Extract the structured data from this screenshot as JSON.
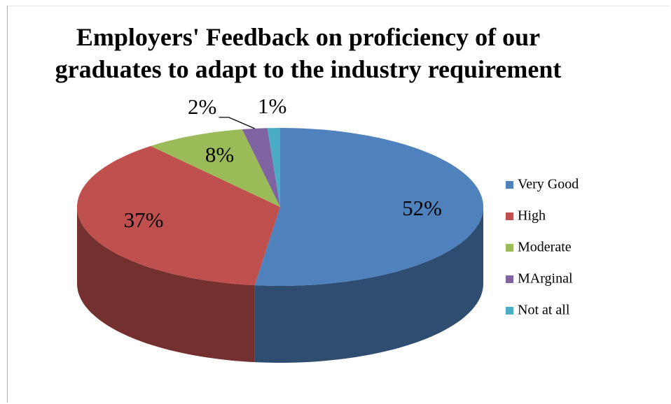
{
  "chart_data": {
    "type": "pie",
    "title": "Employers' Feedback on proficiency of our\ngraduates to adapt to the industry requirement",
    "categories": [
      "Very Good",
      "High",
      "Moderate",
      "MArginal",
      "Not at all"
    ],
    "values": [
      52,
      37,
      8,
      2,
      1
    ],
    "value_labels": [
      "52%",
      "37%",
      "8%",
      "2%",
      "1%"
    ],
    "colors": [
      "#4f81bd",
      "#c0504d",
      "#9bbb59",
      "#8064a2",
      "#4bacc6"
    ],
    "legend": "right"
  }
}
